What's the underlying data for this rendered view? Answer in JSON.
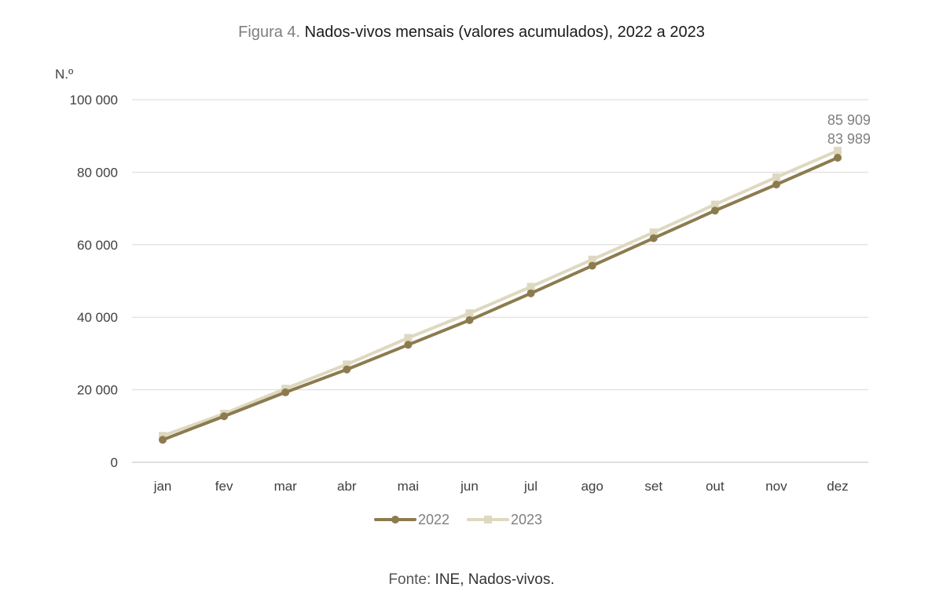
{
  "figure": {
    "prefix": "Figura 4.",
    "title": "Nados-vivos mensais (valores acumulados), 2022 a 2023",
    "source_label": "Fonte:",
    "source_text": "INE, Nados-vivos."
  },
  "chart_data": {
    "type": "line",
    "title": "Nados-vivos mensais (valores acumulados), 2022 a 2023",
    "ylabel": "N.º",
    "xlabel": "",
    "categories": [
      "jan",
      "fev",
      "mar",
      "abr",
      "mai",
      "jun",
      "jul",
      "ago",
      "set",
      "out",
      "nov",
      "dez"
    ],
    "ylim": [
      0,
      100000
    ],
    "yticks": [
      0,
      20000,
      40000,
      60000,
      80000,
      100000
    ],
    "ytick_labels": [
      "0",
      "20 000",
      "40 000",
      "60 000",
      "80 000",
      "100 000"
    ],
    "grid": true,
    "legend": "bottom",
    "series": [
      {
        "name": "2022",
        "color": "#8c7b4e",
        "marker": "circle",
        "values": [
          6200,
          12700,
          19300,
          25600,
          32400,
          39200,
          46600,
          54200,
          61800,
          69400,
          76600,
          83989
        ],
        "end_label": "83 989"
      },
      {
        "name": "2023",
        "color": "#ded8c0",
        "marker": "square",
        "values": [
          7300,
          13400,
          20300,
          27000,
          34300,
          41100,
          48400,
          55900,
          63400,
          71100,
          78600,
          85909
        ],
        "end_label": "85 909"
      }
    ]
  }
}
